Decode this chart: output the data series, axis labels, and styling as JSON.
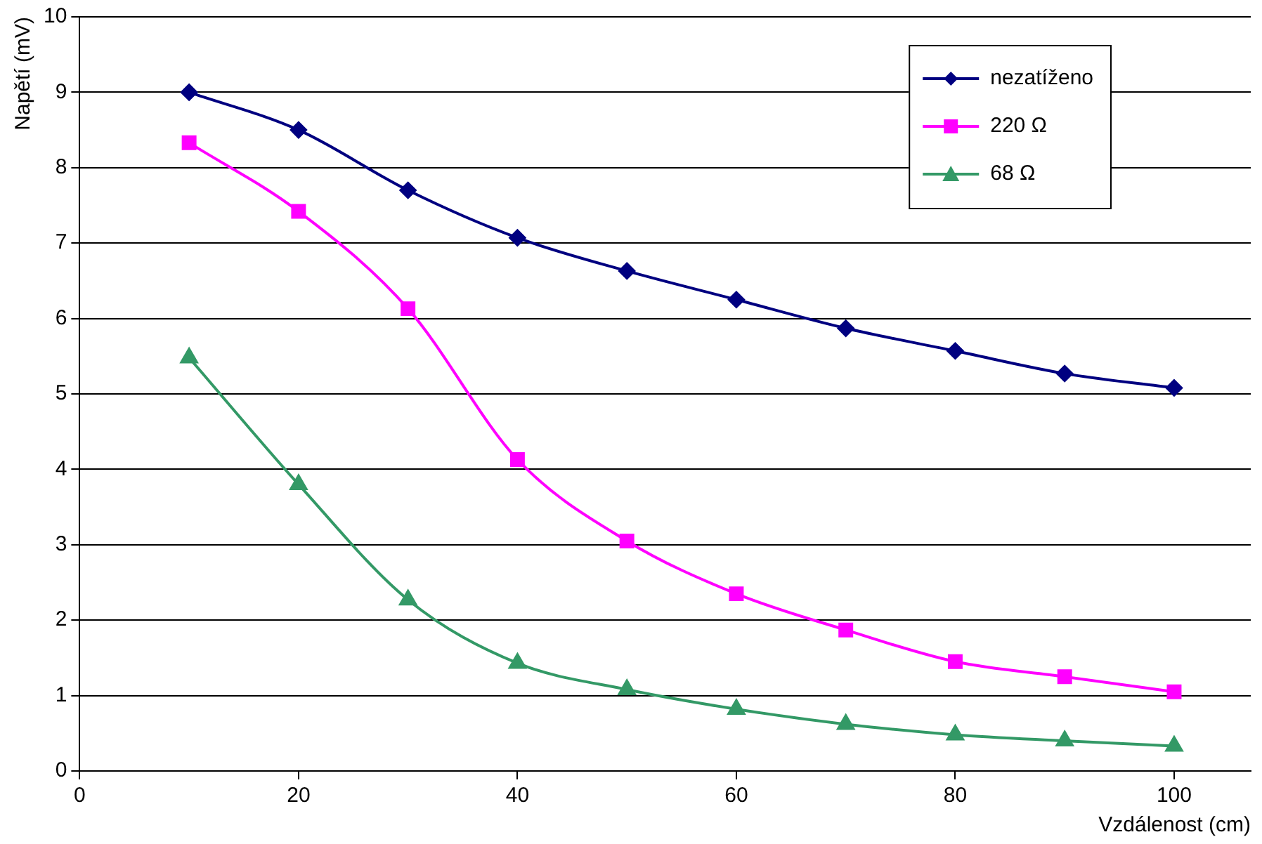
{
  "chart_data": {
    "type": "line",
    "xlabel": "Vzdálenost (cm)",
    "ylabel": "Napětí (mV)",
    "x": [
      10,
      20,
      30,
      40,
      50,
      60,
      70,
      80,
      90,
      100
    ],
    "xlim": [
      0,
      107
    ],
    "xticks": [
      0,
      20,
      40,
      60,
      80,
      100
    ],
    "ylim": [
      0,
      10
    ],
    "yticks": [
      0,
      1,
      2,
      3,
      4,
      5,
      6,
      7,
      8,
      9,
      10
    ],
    "grid": "y",
    "legend": "top right",
    "series": [
      {
        "name": "nezatíženo",
        "color": "#000080",
        "marker": "diamond",
        "values": [
          9.0,
          8.5,
          7.7,
          7.07,
          6.63,
          6.25,
          5.87,
          5.57,
          5.27,
          5.08
        ]
      },
      {
        "name": "220 Ω",
        "color": "#ff00ff",
        "marker": "square",
        "values": [
          8.33,
          7.42,
          6.13,
          4.13,
          3.05,
          2.35,
          1.87,
          1.45,
          1.25,
          1.05
        ]
      },
      {
        "name": "68 Ω",
        "color": "#339966",
        "marker": "triangle",
        "values": [
          5.48,
          3.8,
          2.27,
          1.43,
          1.08,
          0.82,
          0.62,
          0.48,
          0.4,
          0.33
        ]
      }
    ]
  }
}
